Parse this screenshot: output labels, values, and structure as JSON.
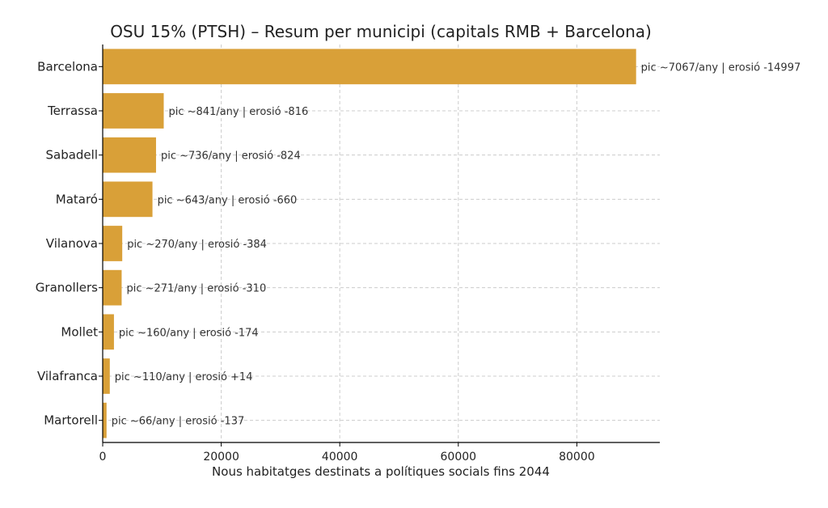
{
  "chart_data": {
    "type": "bar",
    "orientation": "horizontal",
    "title": "OSU 15% (PTSH) – Resum per municipi (capitals RMB + Barcelona)",
    "xlabel": "Nous habitatges destinats a polítiques socials fins 2044",
    "ylabel": "",
    "xlim": [
      0,
      94000
    ],
    "xticks": [
      0,
      20000,
      40000,
      60000,
      80000
    ],
    "xtick_labels": [
      "0",
      "20000",
      "40000",
      "60000",
      "80000"
    ],
    "grid": true,
    "bar_color": "#D9A038",
    "categories": [
      "Barcelona",
      "Terrassa",
      "Sabadell",
      "Mataró",
      "Vilanova",
      "Granollers",
      "Mollet",
      "Vilafranca",
      "Martorell"
    ],
    "values": [
      90000,
      10300,
      9000,
      8400,
      3300,
      3200,
      1900,
      1200,
      650
    ],
    "annotations": [
      "pic ~7067/any | erosió -14997",
      "pic ~841/any | erosió -816",
      "pic ~736/any | erosió -824",
      "pic ~643/any | erosió -660",
      "pic ~270/any | erosió -384",
      "pic ~271/any | erosió -310",
      "pic ~160/any | erosió -174",
      "pic ~110/any | erosió +14",
      "pic ~66/any | erosió -137"
    ]
  }
}
